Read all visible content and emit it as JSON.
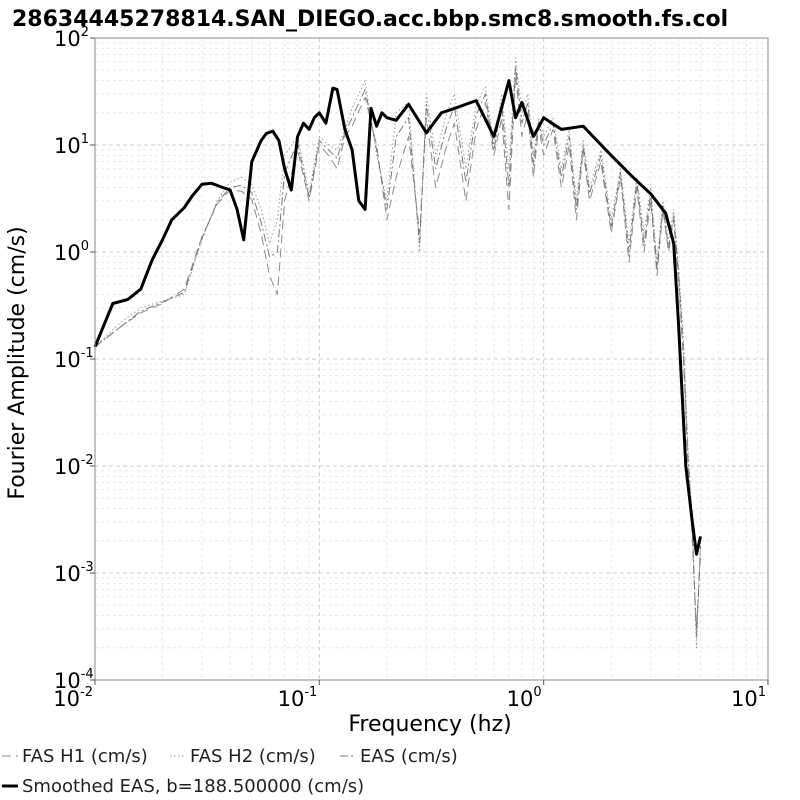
{
  "chart_data": {
    "type": "line",
    "title": "28634445278814.SAN_DIEGO.acc.bbp.smc8.smooth.fs.col",
    "xlabel": "Frequency (hz)",
    "ylabel": "Fourier Amplitude (cm/s)",
    "xscale": "log",
    "yscale": "log",
    "xlim": [
      0.01,
      10
    ],
    "ylim": [
      0.0001,
      100
    ],
    "x_ticks": [
      {
        "base": "10",
        "exp": "-2",
        "value": 0.01
      },
      {
        "base": "10",
        "exp": "-1",
        "value": 0.1
      },
      {
        "base": "10",
        "exp": "0",
        "value": 1
      },
      {
        "base": "10",
        "exp": "1",
        "value": 10
      }
    ],
    "y_ticks": [
      {
        "base": "10",
        "exp": "-4",
        "value": 0.0001
      },
      {
        "base": "10",
        "exp": "-3",
        "value": 0.001
      },
      {
        "base": "10",
        "exp": "-2",
        "value": 0.01
      },
      {
        "base": "10",
        "exp": "-1",
        "value": 0.1
      },
      {
        "base": "10",
        "exp": "0",
        "value": 1
      },
      {
        "base": "10",
        "exp": "1",
        "value": 10
      },
      {
        "base": "10",
        "exp": "2",
        "value": 100
      }
    ],
    "grid": true,
    "legend_position": "bottom",
    "series": [
      {
        "name": "FAS H1 (cm/s)",
        "color": "#8c8c8c",
        "dash": "9,5",
        "width": 1,
        "x": [
          0.01,
          0.013,
          0.016,
          0.02,
          0.025,
          0.03,
          0.035,
          0.04,
          0.045,
          0.05,
          0.055,
          0.06,
          0.065,
          0.07,
          0.08,
          0.09,
          0.1,
          0.11,
          0.12,
          0.13,
          0.14,
          0.16,
          0.18,
          0.2,
          0.22,
          0.25,
          0.28,
          0.3,
          0.33,
          0.37,
          0.4,
          0.45,
          0.5,
          0.55,
          0.6,
          0.65,
          0.7,
          0.75,
          0.8,
          0.85,
          0.9,
          0.95,
          1.0,
          1.1,
          1.2,
          1.3,
          1.4,
          1.5,
          1.6,
          1.8,
          2.0,
          2.2,
          2.4,
          2.6,
          2.8,
          3.0,
          3.2,
          3.4,
          3.6,
          3.8,
          4.0,
          4.2,
          4.4,
          4.6,
          4.8,
          5.0
        ],
        "y": [
          0.13,
          0.2,
          0.27,
          0.33,
          0.45,
          1.4,
          2.8,
          3.8,
          3.7,
          3.1,
          1.5,
          0.6,
          0.4,
          3.0,
          9.0,
          3.0,
          10.0,
          8.0,
          6.0,
          12.0,
          15.0,
          28.0,
          10.0,
          2.0,
          5.0,
          12.0,
          1.5,
          18.0,
          4.0,
          10.0,
          16.0,
          3.0,
          14.0,
          25.0,
          8.0,
          18.0,
          2.5,
          45.0,
          12.0,
          20.0,
          5.0,
          15.0,
          8.0,
          14.0,
          4.0,
          10.0,
          2.0,
          9.0,
          3.0,
          7.0,
          1.5,
          5.0,
          0.8,
          4.0,
          1.0,
          3.0,
          0.6,
          2.5,
          1.0,
          2.0,
          0.5,
          0.1,
          0.01,
          0.002,
          0.0003,
          0.0015
        ]
      },
      {
        "name": "FAS H2 (cm/s)",
        "color": "#9a9a9a",
        "dash": "1.5,2.5",
        "width": 1,
        "x": [
          0.01,
          0.013,
          0.016,
          0.02,
          0.025,
          0.03,
          0.035,
          0.04,
          0.045,
          0.05,
          0.055,
          0.06,
          0.065,
          0.07,
          0.08,
          0.09,
          0.1,
          0.11,
          0.12,
          0.13,
          0.14,
          0.16,
          0.18,
          0.2,
          0.22,
          0.25,
          0.28,
          0.3,
          0.33,
          0.37,
          0.4,
          0.45,
          0.5,
          0.55,
          0.6,
          0.65,
          0.7,
          0.75,
          0.8,
          0.85,
          0.9,
          0.95,
          1.0,
          1.1,
          1.2,
          1.3,
          1.4,
          1.5,
          1.6,
          1.8,
          2.0,
          2.2,
          2.4,
          2.6,
          2.8,
          3.0,
          3.2,
          3.4,
          3.6,
          3.8,
          4.0,
          4.2,
          4.4,
          4.6,
          4.8,
          5.0
        ],
        "y": [
          0.13,
          0.22,
          0.3,
          0.35,
          0.4,
          1.3,
          3.0,
          4.5,
          5.0,
          4.3,
          2.5,
          1.2,
          2.0,
          8.0,
          12.0,
          3.5,
          12.0,
          10.0,
          9.0,
          14.0,
          22.0,
          40.0,
          8.0,
          3.0,
          20.0,
          25.0,
          1.0,
          30.0,
          8.0,
          20.0,
          30.0,
          6.0,
          24.0,
          35.0,
          10.0,
          30.0,
          6.0,
          65.0,
          20.0,
          30.0,
          8.0,
          18.0,
          12.0,
          18.0,
          6.0,
          14.0,
          3.0,
          11.0,
          4.0,
          9.0,
          2.0,
          6.0,
          1.2,
          5.0,
          1.5,
          4.0,
          0.8,
          3.0,
          1.3,
          2.5,
          0.7,
          0.15,
          0.015,
          0.003,
          0.0002,
          0.002
        ]
      },
      {
        "name": "EAS (cm/s)",
        "color": "#7a7a7a",
        "dash": "8,3,2,3",
        "width": 1,
        "x": [
          0.01,
          0.013,
          0.016,
          0.02,
          0.025,
          0.03,
          0.035,
          0.04,
          0.045,
          0.05,
          0.055,
          0.06,
          0.065,
          0.07,
          0.08,
          0.09,
          0.1,
          0.11,
          0.12,
          0.13,
          0.14,
          0.16,
          0.18,
          0.2,
          0.22,
          0.25,
          0.28,
          0.3,
          0.33,
          0.37,
          0.4,
          0.45,
          0.5,
          0.55,
          0.6,
          0.65,
          0.7,
          0.75,
          0.8,
          0.85,
          0.9,
          0.95,
          1.0,
          1.1,
          1.2,
          1.3,
          1.4,
          1.5,
          1.6,
          1.8,
          2.0,
          2.2,
          2.4,
          2.6,
          2.8,
          3.0,
          3.2,
          3.4,
          3.6,
          3.8,
          4.0,
          4.2,
          4.4,
          4.6,
          4.8,
          5.0
        ],
        "y": [
          0.13,
          0.2,
          0.28,
          0.34,
          0.42,
          1.35,
          2.9,
          4.0,
          4.2,
          3.6,
          1.9,
          0.9,
          1.0,
          5.5,
          10.5,
          3.2,
          11.0,
          9.0,
          7.5,
          13.0,
          18.0,
          33.0,
          9.0,
          2.5,
          12.0,
          18.0,
          1.2,
          24.0,
          6.0,
          15.0,
          23.0,
          4.5,
          19.0,
          30.0,
          9.0,
          24.0,
          4.0,
          55.0,
          16.0,
          25.0,
          6.5,
          16.5,
          10.0,
          16.0,
          5.0,
          12.0,
          2.5,
          10.0,
          3.5,
          8.0,
          1.7,
          5.5,
          1.0,
          4.5,
          1.2,
          3.5,
          0.7,
          2.7,
          1.1,
          2.2,
          0.6,
          0.12,
          0.012,
          0.0025,
          0.00025,
          0.0018
        ]
      },
      {
        "name": "Smoothed EAS, b=188.500000 (cm/s)",
        "color": "#000000",
        "dash": "",
        "width": 3,
        "x": [
          0.01,
          0.012,
          0.014,
          0.016,
          0.018,
          0.02,
          0.022,
          0.025,
          0.027,
          0.03,
          0.033,
          0.036,
          0.04,
          0.043,
          0.046,
          0.05,
          0.055,
          0.058,
          0.062,
          0.066,
          0.07,
          0.075,
          0.08,
          0.085,
          0.09,
          0.095,
          0.1,
          0.107,
          0.115,
          0.12,
          0.13,
          0.14,
          0.15,
          0.16,
          0.17,
          0.18,
          0.19,
          0.2,
          0.22,
          0.25,
          0.3,
          0.35,
          0.4,
          0.5,
          0.6,
          0.7,
          0.75,
          0.8,
          0.9,
          1.0,
          1.2,
          1.5,
          2.0,
          2.5,
          3.0,
          3.5,
          3.8,
          4.0,
          4.3,
          4.6,
          4.8,
          5.0
        ],
        "y": [
          0.13,
          0.33,
          0.36,
          0.45,
          0.85,
          1.3,
          2.0,
          2.6,
          3.3,
          4.3,
          4.4,
          4.1,
          3.8,
          2.5,
          1.3,
          7.0,
          11.0,
          12.8,
          13.5,
          11.0,
          6.0,
          3.8,
          12.0,
          16.0,
          14.0,
          18.0,
          20.0,
          16.0,
          34.0,
          33.0,
          14.0,
          9.0,
          3.0,
          2.5,
          22.0,
          15.0,
          20.0,
          18.0,
          17.0,
          24.0,
          13.0,
          20.0,
          22.0,
          26.0,
          12.0,
          40.0,
          18.0,
          25.0,
          12.0,
          18.0,
          14.0,
          15.0,
          8.0,
          5.0,
          3.5,
          2.3,
          1.2,
          0.2,
          0.01,
          0.003,
          0.0015,
          0.0022
        ]
      }
    ]
  }
}
